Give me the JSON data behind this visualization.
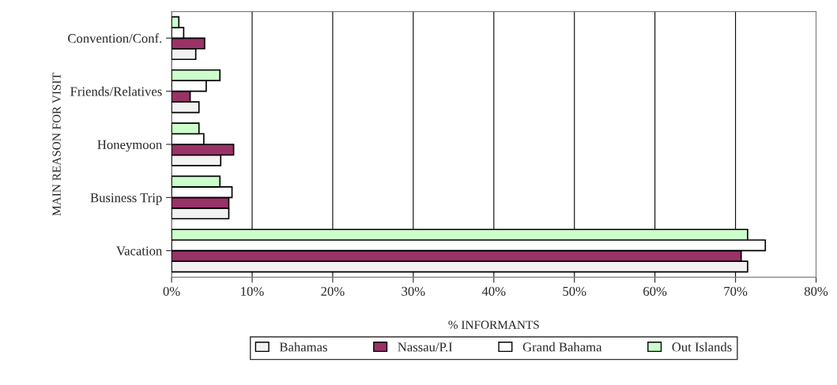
{
  "chart_data": {
    "type": "bar",
    "orientation": "horizontal",
    "xlabel": "% INFORMANTS",
    "ylabel": "MAIN REASON FOR VISIT",
    "categories": [
      "Convention/Conf.",
      "Friends/Relatives",
      "Honeymoon",
      "Business Trip",
      "Vacation"
    ],
    "series": [
      {
        "name": "Bahamas",
        "color": "#f2f2f2",
        "values": [
          3.0,
          3.4,
          6.1,
          7.1,
          71.5
        ]
      },
      {
        "name": "Nassau/P.I",
        "color": "#993366",
        "values": [
          4.1,
          2.3,
          7.7,
          7.1,
          70.7
        ]
      },
      {
        "name": "Grand Bahama",
        "color": "#ffffff",
        "values": [
          1.5,
          4.3,
          4.0,
          7.5,
          73.7
        ]
      },
      {
        "name": "Out Islands",
        "color": "#ccffcc",
        "values": [
          0.9,
          6.0,
          3.4,
          6.0,
          71.5
        ]
      }
    ],
    "xlim": [
      0,
      80
    ],
    "xticks": [
      {
        "value": 0,
        "label": "0%"
      },
      {
        "value": 10,
        "label": "10%"
      },
      {
        "value": 20,
        "label": "20%"
      },
      {
        "value": 30,
        "label": "30%"
      },
      {
        "value": 40,
        "label": "40%"
      },
      {
        "value": 50,
        "label": "50%"
      },
      {
        "value": 60,
        "label": "60%"
      },
      {
        "value": 70,
        "label": "70%"
      },
      {
        "value": 80,
        "label": "80%"
      }
    ],
    "grid": "x",
    "legend": "bottom"
  }
}
